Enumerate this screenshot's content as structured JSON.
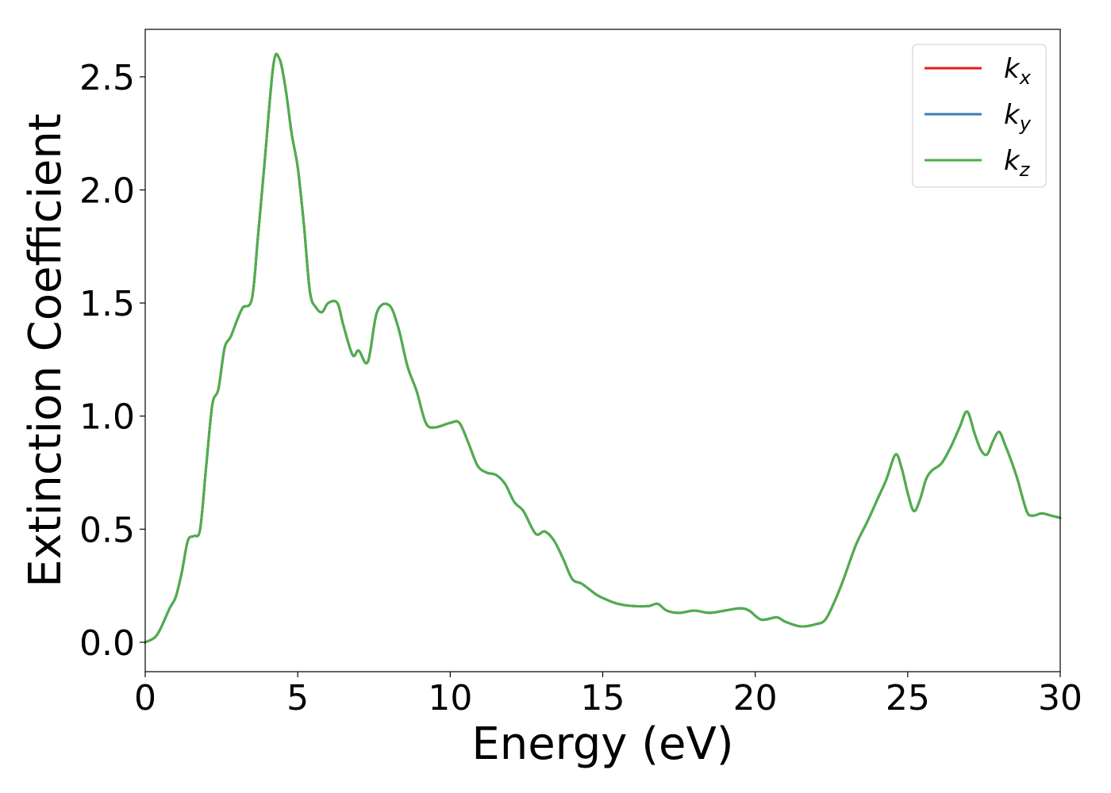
{
  "chart_data": {
    "type": "line",
    "xlabel": "Energy (eV)",
    "ylabel": "Extinction Coefficient",
    "xlim": [
      0,
      30
    ],
    "ylim": [
      -0.13,
      2.71
    ],
    "xticks": [
      0,
      5,
      10,
      15,
      20,
      25,
      30
    ],
    "xtick_labels": [
      "0",
      "5",
      "10",
      "15",
      "20",
      "25",
      "30"
    ],
    "yticks": [
      0.0,
      0.5,
      1.0,
      1.5,
      2.0,
      2.5
    ],
    "ytick_labels": [
      "0.0",
      "0.5",
      "1.0",
      "1.5",
      "2.0",
      "2.5"
    ],
    "grid": false,
    "legend_position": "top-right",
    "x": [
      0,
      0.3,
      0.5,
      0.8,
      1.0,
      1.2,
      1.4,
      1.6,
      1.8,
      2.0,
      2.2,
      2.4,
      2.6,
      2.8,
      3.0,
      3.2,
      3.5,
      3.7,
      3.9,
      4.2,
      4.4,
      4.6,
      4.8,
      5.0,
      5.2,
      5.4,
      5.6,
      5.8,
      6.0,
      6.3,
      6.5,
      6.8,
      7.0,
      7.3,
      7.6,
      8.0,
      8.3,
      8.6,
      8.9,
      9.2,
      9.5,
      10.0,
      10.3,
      10.6,
      10.9,
      11.2,
      11.5,
      11.8,
      12.1,
      12.4,
      12.8,
      13.1,
      13.4,
      13.7,
      14.0,
      14.3,
      14.6,
      14.8,
      15.1,
      15.5,
      16.0,
      16.5,
      16.8,
      17.1,
      17.5,
      18.0,
      18.5,
      19.0,
      19.5,
      19.8,
      20.2,
      20.7,
      21.0,
      21.5,
      22.0,
      22.3,
      22.6,
      22.9,
      23.3,
      23.7,
      24.0,
      24.3,
      24.6,
      24.8,
      25.0,
      25.2,
      25.4,
      25.6,
      25.8,
      26.1,
      26.4,
      26.7,
      26.95,
      27.2,
      27.4,
      27.6,
      27.8,
      28.0,
      28.2,
      28.4,
      28.6,
      28.9,
      29.1,
      29.4,
      29.7,
      30.0
    ],
    "series": [
      {
        "name": "k_x",
        "label_main": "k",
        "label_sub": "x",
        "color": "#e41a1c",
        "values": [
          0.0,
          0.02,
          0.06,
          0.15,
          0.2,
          0.31,
          0.45,
          0.47,
          0.5,
          0.78,
          1.05,
          1.12,
          1.3,
          1.35,
          1.42,
          1.48,
          1.52,
          1.8,
          2.1,
          2.55,
          2.58,
          2.45,
          2.25,
          2.1,
          1.85,
          1.55,
          1.48,
          1.46,
          1.5,
          1.5,
          1.4,
          1.27,
          1.29,
          1.24,
          1.46,
          1.49,
          1.39,
          1.22,
          1.11,
          0.97,
          0.95,
          0.97,
          0.97,
          0.88,
          0.78,
          0.75,
          0.74,
          0.7,
          0.62,
          0.58,
          0.48,
          0.49,
          0.45,
          0.37,
          0.28,
          0.26,
          0.23,
          0.21,
          0.19,
          0.17,
          0.16,
          0.16,
          0.17,
          0.14,
          0.13,
          0.14,
          0.13,
          0.14,
          0.15,
          0.14,
          0.1,
          0.11,
          0.09,
          0.07,
          0.08,
          0.1,
          0.18,
          0.28,
          0.43,
          0.54,
          0.63,
          0.72,
          0.83,
          0.77,
          0.66,
          0.58,
          0.63,
          0.72,
          0.76,
          0.79,
          0.86,
          0.95,
          1.02,
          0.92,
          0.85,
          0.83,
          0.89,
          0.93,
          0.87,
          0.8,
          0.72,
          0.58,
          0.56,
          0.57,
          0.56,
          0.55
        ]
      },
      {
        "name": "k_y",
        "label_main": "k",
        "label_sub": "y",
        "color": "#377eb8",
        "values": [
          0.0,
          0.02,
          0.06,
          0.15,
          0.2,
          0.31,
          0.45,
          0.47,
          0.5,
          0.78,
          1.05,
          1.12,
          1.3,
          1.35,
          1.42,
          1.48,
          1.52,
          1.8,
          2.1,
          2.55,
          2.58,
          2.45,
          2.25,
          2.1,
          1.85,
          1.55,
          1.48,
          1.46,
          1.5,
          1.5,
          1.4,
          1.27,
          1.29,
          1.24,
          1.46,
          1.49,
          1.39,
          1.22,
          1.11,
          0.97,
          0.95,
          0.97,
          0.97,
          0.88,
          0.78,
          0.75,
          0.74,
          0.7,
          0.62,
          0.58,
          0.48,
          0.49,
          0.45,
          0.37,
          0.28,
          0.26,
          0.23,
          0.21,
          0.19,
          0.17,
          0.16,
          0.16,
          0.17,
          0.14,
          0.13,
          0.14,
          0.13,
          0.14,
          0.15,
          0.14,
          0.1,
          0.11,
          0.09,
          0.07,
          0.08,
          0.1,
          0.18,
          0.28,
          0.43,
          0.54,
          0.63,
          0.72,
          0.83,
          0.77,
          0.66,
          0.58,
          0.63,
          0.72,
          0.76,
          0.79,
          0.86,
          0.95,
          1.02,
          0.92,
          0.85,
          0.83,
          0.89,
          0.93,
          0.87,
          0.8,
          0.72,
          0.58,
          0.56,
          0.57,
          0.56,
          0.55
        ]
      },
      {
        "name": "k_z",
        "label_main": "k",
        "label_sub": "z",
        "color": "#4daf4a",
        "values": [
          0.0,
          0.02,
          0.06,
          0.15,
          0.2,
          0.31,
          0.45,
          0.47,
          0.5,
          0.78,
          1.05,
          1.12,
          1.3,
          1.35,
          1.42,
          1.48,
          1.52,
          1.8,
          2.1,
          2.55,
          2.58,
          2.45,
          2.25,
          2.1,
          1.85,
          1.55,
          1.48,
          1.46,
          1.5,
          1.5,
          1.4,
          1.27,
          1.29,
          1.24,
          1.46,
          1.49,
          1.39,
          1.22,
          1.11,
          0.97,
          0.95,
          0.97,
          0.97,
          0.88,
          0.78,
          0.75,
          0.74,
          0.7,
          0.62,
          0.58,
          0.48,
          0.49,
          0.45,
          0.37,
          0.28,
          0.26,
          0.23,
          0.21,
          0.19,
          0.17,
          0.16,
          0.16,
          0.17,
          0.14,
          0.13,
          0.14,
          0.13,
          0.14,
          0.15,
          0.14,
          0.1,
          0.11,
          0.09,
          0.07,
          0.08,
          0.1,
          0.18,
          0.28,
          0.43,
          0.54,
          0.63,
          0.72,
          0.83,
          0.77,
          0.66,
          0.58,
          0.63,
          0.72,
          0.76,
          0.79,
          0.86,
          0.95,
          1.02,
          0.92,
          0.85,
          0.83,
          0.89,
          0.93,
          0.87,
          0.8,
          0.72,
          0.58,
          0.56,
          0.57,
          0.56,
          0.55
        ]
      }
    ]
  }
}
